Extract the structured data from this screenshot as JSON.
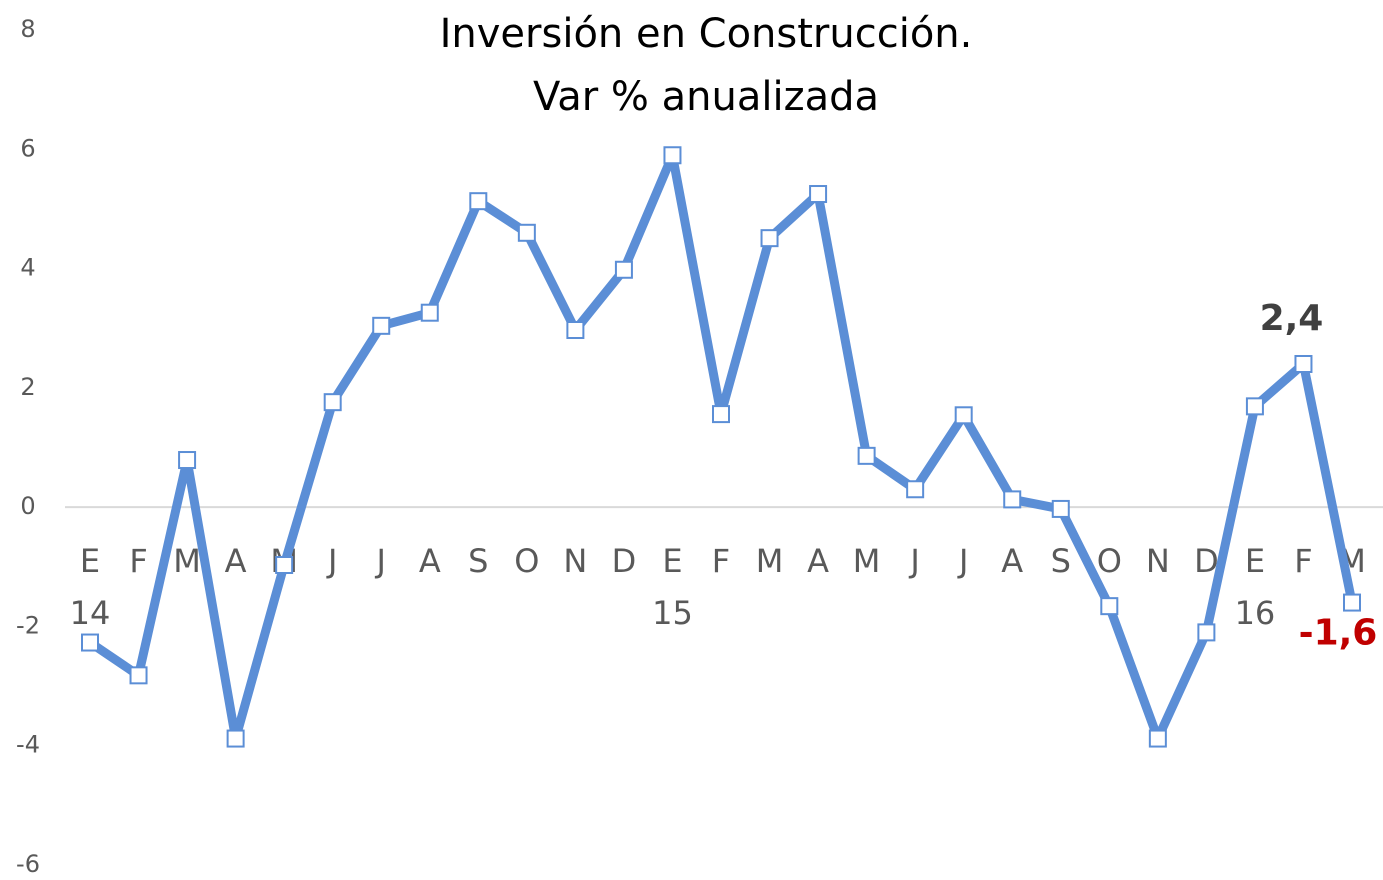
{
  "chart_data": {
    "type": "line",
    "title": "Inversión en Construcción.",
    "subtitle": "Var % anualizada",
    "categories": [
      "E",
      "F",
      "M",
      "A",
      "M",
      "J",
      "J",
      "A",
      "S",
      "O",
      "N",
      "D",
      "E",
      "F",
      "M",
      "A",
      "M",
      "J",
      "J",
      "A",
      "S",
      "O",
      "N",
      "D",
      "E",
      "F",
      "M"
    ],
    "category_years": [
      "14",
      null,
      null,
      null,
      null,
      null,
      null,
      null,
      null,
      null,
      null,
      null,
      "15",
      null,
      null,
      null,
      null,
      null,
      null,
      null,
      null,
      null,
      null,
      null,
      "16",
      null,
      null
    ],
    "series": [
      {
        "name": "Inversión en Construcción",
        "color": "#5b8ed6",
        "values": [
          -2.27,
          -2.82,
          0.79,
          -3.88,
          -0.97,
          1.76,
          3.04,
          3.26,
          5.13,
          4.6,
          2.97,
          3.98,
          5.9,
          1.56,
          4.51,
          5.25,
          0.86,
          0.3,
          1.54,
          0.13,
          -0.03,
          -1.66,
          -3.88,
          -2.1,
          1.69,
          2.4,
          -1.6
        ],
        "value_labels": [
          null,
          null,
          null,
          null,
          null,
          null,
          null,
          null,
          null,
          null,
          null,
          null,
          null,
          null,
          null,
          null,
          null,
          null,
          null,
          null,
          null,
          null,
          null,
          null,
          null,
          "2,4",
          "-1,6"
        ],
        "value_label_colors": [
          null,
          null,
          null,
          null,
          null,
          null,
          null,
          null,
          null,
          null,
          null,
          null,
          null,
          null,
          null,
          null,
          null,
          null,
          null,
          null,
          null,
          null,
          null,
          null,
          null,
          "#404040",
          "#c00000"
        ]
      }
    ],
    "ylim": [
      -6,
      8
    ],
    "yticks": [
      -6,
      -4,
      -2,
      0,
      2,
      4,
      6,
      8
    ],
    "zero_line": true,
    "legend": false
  }
}
